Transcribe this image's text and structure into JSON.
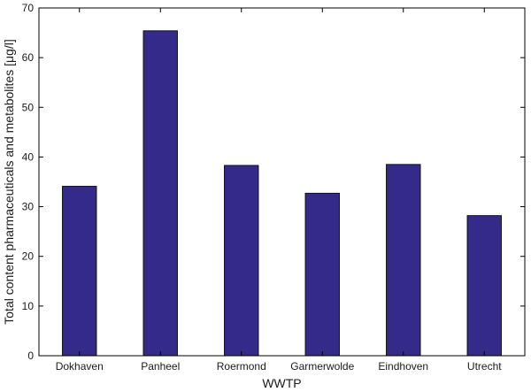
{
  "chart_data": {
    "type": "bar",
    "categories": [
      "Dokhaven",
      "Panheel",
      "Roermond",
      "Garmerwolde",
      "Eindhoven",
      "Utrecht"
    ],
    "values": [
      34.1,
      65.4,
      38.3,
      32.7,
      38.5,
      28.2
    ],
    "title": "",
    "xlabel": "WWTP",
    "ylabel": "Total content pharmaceuticals and metabolites [μg/l]",
    "ylim": [
      0,
      70
    ],
    "yticks": [
      0,
      10,
      20,
      30,
      40,
      50,
      60,
      70
    ],
    "grid": false,
    "legend": "none",
    "colors": {
      "bar_fill": "#332a8a",
      "bar_stroke": "#111111",
      "axis": "#000000"
    }
  }
}
